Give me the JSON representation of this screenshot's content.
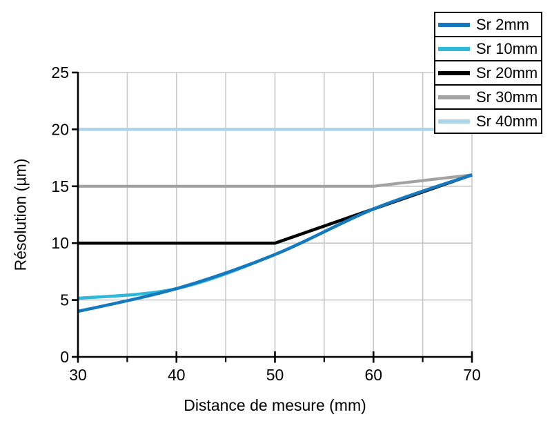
{
  "chart_data": {
    "type": "line",
    "title": "",
    "xlabel": "Distance de mesure (mm)",
    "ylabel": "Résolution (µm)",
    "x": [
      30,
      40,
      50,
      60,
      70
    ],
    "xlim": [
      30,
      70
    ],
    "ylim": [
      0,
      25
    ],
    "x_major_ticks": [
      30,
      40,
      50,
      60,
      70
    ],
    "x_minor_ticks": [
      35,
      45,
      55,
      65
    ],
    "y_ticks": [
      0,
      5,
      10,
      15,
      20,
      25
    ],
    "grid": true,
    "legend_position": "top-right",
    "series": [
      {
        "name": "Sr 2mm",
        "color": "#1779BD",
        "values": [
          4,
          6,
          9,
          13,
          16
        ],
        "smooth": true,
        "width": 4.5
      },
      {
        "name": "Sr 10mm",
        "color": "#2FB8DA",
        "values": [
          5.15,
          6,
          9,
          13,
          16
        ],
        "smooth": true,
        "width": 4.5
      },
      {
        "name": "Sr 20mm",
        "color": "#000000",
        "values": [
          10,
          10,
          10,
          13,
          16
        ],
        "smooth": false,
        "width": 4.5
      },
      {
        "name": "Sr 30mm",
        "color": "#A2A2A2",
        "values": [
          15,
          15,
          15,
          15,
          16
        ],
        "smooth": false,
        "width": 4.2
      },
      {
        "name": "Sr 40mm",
        "color": "#AAD4E8",
        "values": [
          20,
          20,
          20,
          20,
          20
        ],
        "smooth": false,
        "width": 4.5
      }
    ],
    "draw_order": [
      4,
      3,
      1,
      2,
      0
    ],
    "colors": {
      "grid": "#C8C8C8",
      "axis": "#000000",
      "tick_label": "#000000",
      "background": "#FFFFFF"
    }
  }
}
